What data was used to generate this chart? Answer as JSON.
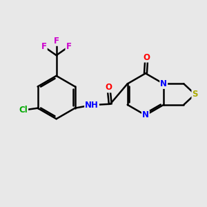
{
  "background_color": "#e8e8e8",
  "bond_color": "#000000",
  "atom_colors": {
    "F": "#cc00cc",
    "Cl": "#00aa00",
    "N": "#0000ff",
    "O": "#ff0000",
    "S": "#aaaa00",
    "H": "#000000",
    "C": "#000000"
  },
  "figsize": [
    3.0,
    3.0
  ],
  "dpi": 100,
  "bond_lw": 1.8,
  "font_size": 8.5
}
